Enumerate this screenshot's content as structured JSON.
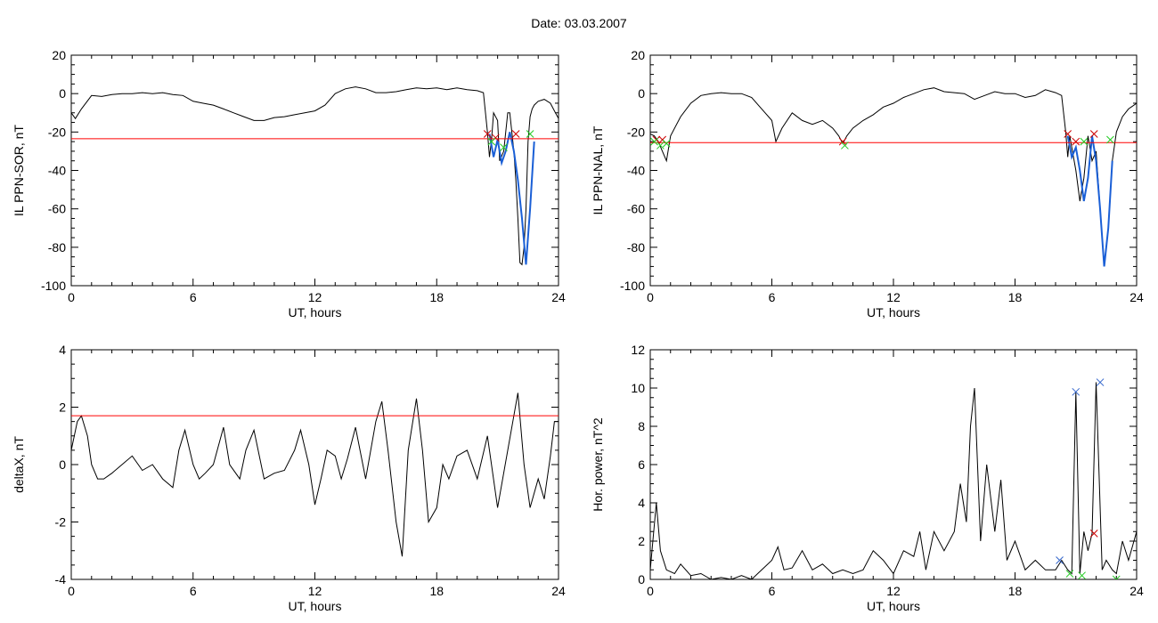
{
  "header": {
    "title": "Date:  03.03.2007"
  },
  "colors": {
    "axis": "#000000",
    "trace": "#000000",
    "threshold": "#ff0000",
    "event_blue": "#1a5fd6",
    "marker_red": "#cc0000",
    "marker_green": "#22cc22",
    "marker_blue": "#3366cc"
  },
  "chart_data": [
    {
      "type": "line",
      "ylabel": "IL PPN-SOR, nT",
      "xlabel": "UT, hours",
      "xlim": [
        0,
        24
      ],
      "ylim": [
        -100,
        20
      ],
      "xticks": [
        0,
        6,
        12,
        18,
        24
      ],
      "yticks": [
        20,
        0,
        -20,
        -40,
        -60,
        -80,
        -100
      ],
      "threshold": -23.5,
      "series": [
        {
          "x": [
            0,
            0.2,
            0.5,
            1,
            1.5,
            2,
            2.5,
            3,
            3.5,
            4,
            4.5,
            5,
            5.5,
            6,
            6.5,
            7,
            7.5,
            8,
            8.5,
            9,
            9.5,
            10,
            10.5,
            11,
            11.5,
            12,
            12.5,
            13,
            13.5,
            14,
            14.5,
            15,
            15.5,
            16,
            16.5,
            17,
            17.5,
            18,
            18.5,
            19,
            19.5,
            20,
            20.3,
            20.5,
            20.6,
            20.7,
            20.8,
            21,
            21.1,
            21.3,
            21.5,
            21.6,
            21.8,
            21.9,
            22,
            22.1,
            22.2,
            22.3,
            22.4,
            22.5,
            22.6,
            22.7,
            22.8,
            23,
            23.3,
            23.6,
            23.8,
            24
          ],
          "y": [
            -10,
            -13,
            -8,
            -1,
            -1.5,
            -0.5,
            0,
            0,
            0.5,
            0,
            0.5,
            -0.5,
            -1,
            -4,
            -5,
            -6,
            -8,
            -10,
            -12,
            -14,
            -14,
            -12.5,
            -12,
            -11,
            -10,
            -9,
            -6,
            0,
            2.5,
            3.5,
            2.5,
            0.5,
            0.5,
            1,
            2,
            3,
            2.5,
            3,
            2,
            3,
            2,
            1.5,
            0.5,
            -20,
            -33,
            -24,
            -10,
            -14,
            -35,
            -30,
            -10,
            -10,
            -30,
            -45,
            -65,
            -88,
            -89,
            -80,
            -60,
            -25,
            -12,
            -8,
            -6,
            -4,
            -3,
            -5,
            -9,
            -13
          ]
        }
      ],
      "highlight": {
        "x": [
          20.6,
          20.8,
          21.0,
          21.2,
          21.4,
          21.6,
          21.8,
          22.0,
          22.2,
          22.4,
          22.6,
          22.8
        ],
        "y": [
          -21,
          -33,
          -24,
          -36,
          -30,
          -20,
          -30,
          -45,
          -65,
          -89,
          -60,
          -25
        ]
      },
      "markers_red": {
        "x": [
          20.5,
          20.9,
          21.9
        ],
        "y": [
          -21,
          -23,
          -21
        ]
      },
      "markers_green": {
        "x": [
          20.7,
          21.3,
          22.6
        ],
        "y": [
          -25,
          -28,
          -21
        ]
      }
    },
    {
      "type": "line",
      "ylabel": "IL PPN-NAL, nT",
      "xlabel": "UT, hours",
      "xlim": [
        0,
        24
      ],
      "ylim": [
        -100,
        20
      ],
      "xticks": [
        0,
        6,
        12,
        18,
        24
      ],
      "yticks": [
        20,
        0,
        -20,
        -40,
        -60,
        -80,
        -100
      ],
      "threshold": -25.5,
      "series": [
        {
          "x": [
            0,
            0.2,
            0.4,
            0.6,
            0.8,
            1,
            1.5,
            2,
            2.5,
            3,
            3.5,
            4,
            4.5,
            5,
            5.5,
            6,
            6.2,
            6.5,
            7,
            7.5,
            8,
            8.5,
            9,
            9.3,
            9.5,
            9.7,
            10,
            10.5,
            11,
            11.5,
            12,
            12.5,
            13,
            13.5,
            14,
            14.5,
            15,
            15.5,
            16,
            16.5,
            17,
            17.5,
            18,
            18.5,
            19,
            19.5,
            20,
            20.3,
            20.5,
            20.6,
            20.7,
            20.8,
            21,
            21.2,
            21.4,
            21.6,
            21.8,
            22,
            22.2,
            22.4,
            22.6,
            22.8,
            23,
            23.3,
            23.6,
            24
          ],
          "y": [
            -21,
            -22,
            -25,
            -30,
            -35,
            -22,
            -12,
            -5,
            -1,
            0,
            0.5,
            0,
            0,
            -2,
            -8,
            -14,
            -25,
            -18,
            -10,
            -14,
            -16,
            -14,
            -18,
            -22,
            -26,
            -22,
            -18,
            -14,
            -11,
            -7,
            -5,
            -2,
            0,
            2,
            3,
            1,
            0.5,
            0,
            -3,
            -1,
            1,
            0,
            0,
            -2,
            -1,
            2,
            0.5,
            -1,
            -20,
            -33,
            -22,
            -28,
            -40,
            -56,
            -44,
            -22,
            -35,
            -30,
            -60,
            -90,
            -70,
            -35,
            -20,
            -12,
            -8,
            -5
          ]
        }
      ],
      "highlight": {
        "x": [
          20.6,
          20.8,
          21.0,
          21.2,
          21.4,
          21.6,
          21.8,
          22.0,
          22.2,
          22.4,
          22.6,
          22.8
        ],
        "y": [
          -22,
          -33,
          -28,
          -40,
          -56,
          -44,
          -22,
          -35,
          -60,
          -90,
          -70,
          -35
        ]
      },
      "markers_red": {
        "x": [
          0.3,
          0.6,
          9.5,
          20.6,
          21.0,
          21.9
        ],
        "y": [
          -24,
          -24,
          -25,
          -21,
          -25,
          -21
        ]
      },
      "markers_green": {
        "x": [
          0.2,
          0.5,
          0.8,
          9.6,
          21.4,
          22.7
        ],
        "y": [
          -25,
          -27,
          -26,
          -27,
          -25,
          -24
        ]
      }
    },
    {
      "type": "line",
      "ylabel": "deltaX, nT",
      "xlabel": "UT, hours",
      "xlim": [
        0,
        24
      ],
      "ylim": [
        -4,
        4
      ],
      "xticks": [
        0,
        6,
        12,
        18,
        24
      ],
      "yticks": [
        4,
        2,
        0,
        -2,
        -4
      ],
      "threshold": 1.7,
      "series": [
        {
          "x": [
            0,
            0.3,
            0.5,
            0.8,
            1,
            1.3,
            1.6,
            2,
            2.5,
            3,
            3.5,
            4,
            4.5,
            5,
            5.3,
            5.6,
            6,
            6.3,
            6.6,
            7,
            7.5,
            7.8,
            8.3,
            8.6,
            9,
            9.5,
            10,
            10.5,
            11,
            11.3,
            11.7,
            12,
            12.3,
            12.6,
            13,
            13.3,
            13.6,
            14,
            14.5,
            15,
            15.3,
            15.6,
            16,
            16.3,
            16.6,
            17,
            17.3,
            17.6,
            18,
            18.3,
            18.6,
            19,
            19.5,
            20,
            20.5,
            21,
            21.5,
            22,
            22.3,
            22.6,
            23,
            23.3,
            23.6,
            23.8,
            24
          ],
          "y": [
            0.5,
            1.5,
            1.7,
            1,
            0,
            -0.5,
            -0.5,
            -0.3,
            0,
            0.3,
            -0.2,
            0,
            -0.5,
            -0.8,
            0.5,
            1.2,
            0,
            -0.5,
            -0.3,
            0,
            1.3,
            0,
            -0.5,
            0.5,
            1.2,
            -0.5,
            -0.3,
            -0.2,
            0.5,
            1.2,
            0,
            -1.4,
            -0.5,
            0.5,
            0.3,
            -0.5,
            0.2,
            1.3,
            -0.5,
            1.5,
            2.2,
            0.5,
            -2,
            -3.2,
            0.5,
            2.3,
            0.5,
            -2,
            -1.5,
            0,
            -0.5,
            0.3,
            0.5,
            -0.5,
            1,
            -1.5,
            0.5,
            2.5,
            0,
            -1.5,
            -0.5,
            -1.2,
            0.3,
            1.5,
            1.5
          ]
        }
      ]
    },
    {
      "type": "line",
      "ylabel": "Hor. power, nT^2",
      "xlabel": "UT, hours",
      "xlim": [
        0,
        24
      ],
      "ylim": [
        0,
        12
      ],
      "xticks": [
        0,
        6,
        12,
        18,
        24
      ],
      "yticks": [
        0,
        2,
        4,
        6,
        8,
        10,
        12
      ],
      "series": [
        {
          "x": [
            0,
            0.3,
            0.5,
            0.8,
            1.2,
            1.5,
            2,
            2.5,
            3,
            3.5,
            4,
            4.5,
            5,
            5.5,
            6,
            6.3,
            6.6,
            7,
            7.5,
            8,
            8.5,
            9,
            9.5,
            10,
            10.5,
            11,
            11.5,
            12,
            12.5,
            13,
            13.3,
            13.6,
            14,
            14.5,
            15,
            15.3,
            15.6,
            15.8,
            16,
            16.3,
            16.6,
            17,
            17.3,
            17.6,
            18,
            18.5,
            19,
            19.5,
            20,
            20.3,
            20.6,
            20.8,
            21,
            21.2,
            21.4,
            21.6,
            21.8,
            22,
            22.1,
            22.3,
            22.5,
            22.8,
            23,
            23.3,
            23.6,
            24
          ],
          "y": [
            0.5,
            4,
            1.5,
            0.5,
            0.3,
            0.8,
            0.2,
            0.3,
            0,
            0.1,
            0,
            0.2,
            0,
            0.5,
            1,
            1.7,
            0.5,
            0.6,
            1.5,
            0.5,
            0.8,
            0.3,
            0.5,
            0.3,
            0.5,
            1.5,
            1,
            0.3,
            1.5,
            1.2,
            2.5,
            0.5,
            2.5,
            1.5,
            2.5,
            5,
            3,
            8,
            10,
            2,
            6,
            2.5,
            5.2,
            1,
            2,
            0.5,
            1,
            0.5,
            0.5,
            1,
            0.5,
            0.3,
            9.8,
            0.3,
            2.5,
            1.5,
            2.4,
            10.3,
            7,
            0.5,
            1,
            0.5,
            0.3,
            2,
            1,
            2.5
          ]
        }
      ],
      "markers_blue": {
        "x": [
          20.2,
          21.0,
          22.2
        ],
        "y": [
          1,
          9.8,
          10.3
        ]
      },
      "markers_green": {
        "x": [
          20.7,
          21.3,
          23.0
        ],
        "y": [
          0.3,
          0.2,
          0
        ]
      },
      "markers_red": {
        "x": [
          21.9
        ],
        "y": [
          2.4
        ]
      }
    }
  ]
}
